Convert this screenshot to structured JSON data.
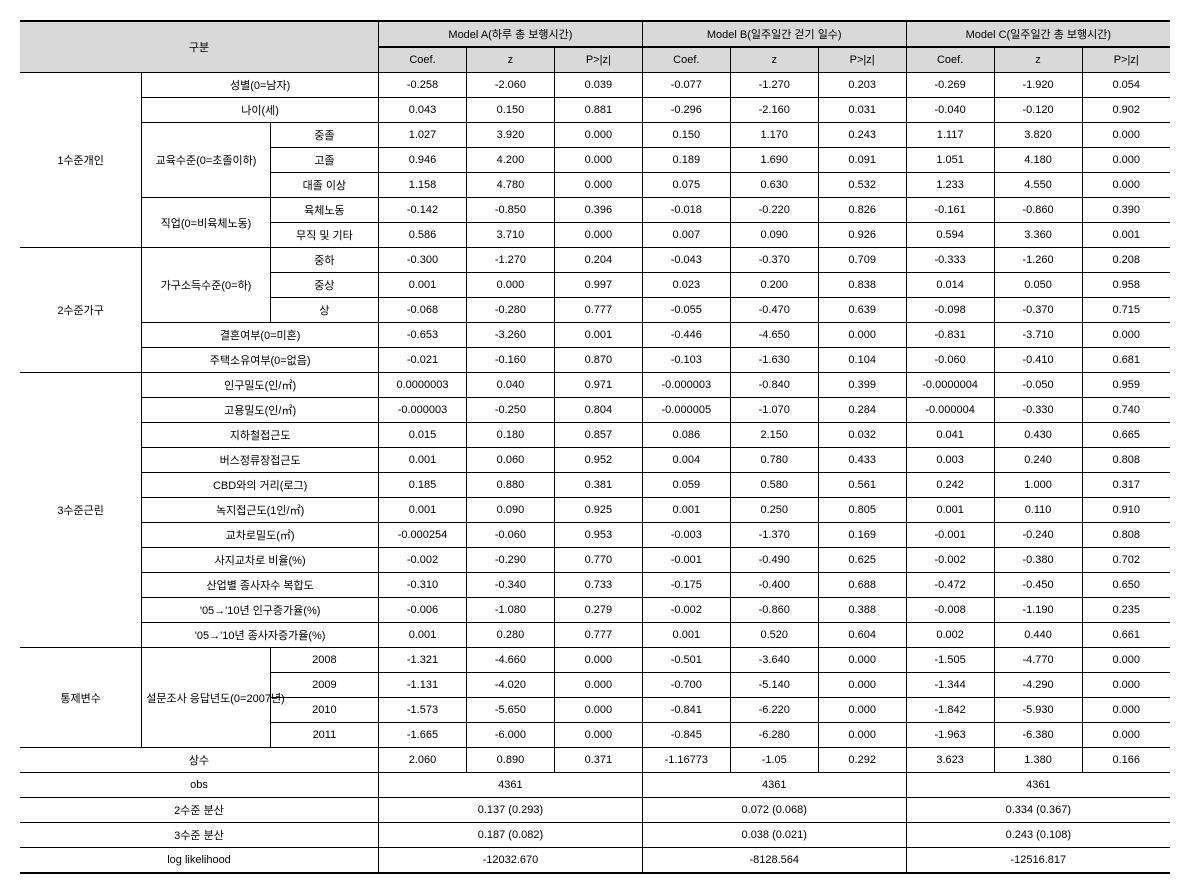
{
  "header": {
    "gubun": "구분",
    "modelA": "Model A(하루 총 보행시간)",
    "modelB": "Model B(일주일간 걷기 일수)",
    "modelC": "Model C(일주일간 총 보행시간)",
    "coef": "Coef.",
    "z": "z",
    "pz": "P>|z|"
  },
  "categories": {
    "level1": "1수준개인",
    "level2": "2수준가구",
    "level3": "3수준근린",
    "control": "통제변수"
  },
  "rows": {
    "gender": {
      "label": "성별(0=남자)",
      "a": [
        "-0.258",
        "-2.060",
        "0.039"
      ],
      "b": [
        "-0.077",
        "-1.270",
        "0.203"
      ],
      "c": [
        "-0.269",
        "-1.920",
        "0.054"
      ]
    },
    "age": {
      "label": "나이(세)",
      "a": [
        "0.043",
        "0.150",
        "0.881"
      ],
      "b": [
        "-0.296",
        "-2.160",
        "0.031"
      ],
      "c": [
        "-0.040",
        "-0.120",
        "0.902"
      ]
    },
    "edu_label": "교육수준(0=초졸이하)",
    "edu_mid": {
      "label": "중졸",
      "a": [
        "1.027",
        "3.920",
        "0.000"
      ],
      "b": [
        "0.150",
        "1.170",
        "0.243"
      ],
      "c": [
        "1.117",
        "3.820",
        "0.000"
      ]
    },
    "edu_high": {
      "label": "고졸",
      "a": [
        "0.946",
        "4.200",
        "0.000"
      ],
      "b": [
        "0.189",
        "1.690",
        "0.091"
      ],
      "c": [
        "1.051",
        "4.180",
        "0.000"
      ]
    },
    "edu_col": {
      "label": "대졸 이상",
      "a": [
        "1.158",
        "4.780",
        "0.000"
      ],
      "b": [
        "0.075",
        "0.630",
        "0.532"
      ],
      "c": [
        "1.233",
        "4.550",
        "0.000"
      ]
    },
    "job_label": "직업(0=비육체노동)",
    "job_phys": {
      "label": "육체노동",
      "a": [
        "-0.142",
        "-0.850",
        "0.396"
      ],
      "b": [
        "-0.018",
        "-0.220",
        "0.826"
      ],
      "c": [
        "-0.161",
        "-0.860",
        "0.390"
      ]
    },
    "job_none": {
      "label": "무직 및 기타",
      "a": [
        "0.586",
        "3.710",
        "0.000"
      ],
      "b": [
        "0.007",
        "0.090",
        "0.926"
      ],
      "c": [
        "0.594",
        "3.360",
        "0.001"
      ]
    },
    "income_label": "가구소득수준(0=하)",
    "inc_midlow": {
      "label": "중하",
      "a": [
        "-0.300",
        "-1.270",
        "0.204"
      ],
      "b": [
        "-0.043",
        "-0.370",
        "0.709"
      ],
      "c": [
        "-0.333",
        "-1.260",
        "0.208"
      ]
    },
    "inc_midhigh": {
      "label": "중상",
      "a": [
        "0.001",
        "0.000",
        "0.997"
      ],
      "b": [
        "0.023",
        "0.200",
        "0.838"
      ],
      "c": [
        "0.014",
        "0.050",
        "0.958"
      ]
    },
    "inc_high": {
      "label": "상",
      "a": [
        "-0.068",
        "-0.280",
        "0.777"
      ],
      "b": [
        "-0.055",
        "-0.470",
        "0.639"
      ],
      "c": [
        "-0.098",
        "-0.370",
        "0.715"
      ]
    },
    "marriage": {
      "label": "결혼여부(0=미혼)",
      "a": [
        "-0.653",
        "-3.260",
        "0.001"
      ],
      "b": [
        "-0.446",
        "-4.650",
        "0.000"
      ],
      "c": [
        "-0.831",
        "-3.710",
        "0.000"
      ]
    },
    "house": {
      "label": "주택소유여부(0=없음)",
      "a": [
        "-0.021",
        "-0.160",
        "0.870"
      ],
      "b": [
        "-0.103",
        "-1.630",
        "0.104"
      ],
      "c": [
        "-0.060",
        "-0.410",
        "0.681"
      ]
    },
    "popden": {
      "label": "인구밀도(인/㎡)",
      "a": [
        "0.0000003",
        "0.040",
        "0.971"
      ],
      "b": [
        "-0.000003",
        "-0.840",
        "0.399"
      ],
      "c": [
        "-0.0000004",
        "-0.050",
        "0.959"
      ]
    },
    "empden": {
      "label": "고용밀도(인/㎡)",
      "a": [
        "-0.000003",
        "-0.250",
        "0.804"
      ],
      "b": [
        "-0.000005",
        "-1.070",
        "0.284"
      ],
      "c": [
        "-0.000004",
        "-0.330",
        "0.740"
      ]
    },
    "subway": {
      "label": "지하철접근도",
      "a": [
        "0.015",
        "0.180",
        "0.857"
      ],
      "b": [
        "0.086",
        "2.150",
        "0.032"
      ],
      "c": [
        "0.041",
        "0.430",
        "0.665"
      ]
    },
    "bus": {
      "label": "버스정류장접근도",
      "a": [
        "0.001",
        "0.060",
        "0.952"
      ],
      "b": [
        "0.004",
        "0.780",
        "0.433"
      ],
      "c": [
        "0.003",
        "0.240",
        "0.808"
      ]
    },
    "cbd": {
      "label": "CBD와의 거리(로그)",
      "a": [
        "0.185",
        "0.880",
        "0.381"
      ],
      "b": [
        "0.059",
        "0.580",
        "0.561"
      ],
      "c": [
        "0.242",
        "1.000",
        "0.317"
      ]
    },
    "green": {
      "label": "녹지접근도(1인/㎡)",
      "a": [
        "0.001",
        "0.090",
        "0.925"
      ],
      "b": [
        "0.001",
        "0.250",
        "0.805"
      ],
      "c": [
        "0.001",
        "0.110",
        "0.910"
      ]
    },
    "intersect": {
      "label": "교차로밀도(㎡)",
      "a": [
        "-0.000254",
        "-0.060",
        "0.953"
      ],
      "b": [
        "-0.003",
        "-1.370",
        "0.169"
      ],
      "c": [
        "-0.001",
        "-0.240",
        "0.808"
      ]
    },
    "fourway": {
      "label": "사지교차로 비율(%)",
      "a": [
        "-0.002",
        "-0.290",
        "0.770"
      ],
      "b": [
        "-0.001",
        "-0.490",
        "0.625"
      ],
      "c": [
        "-0.002",
        "-0.380",
        "0.702"
      ]
    },
    "mix": {
      "label": "산업별 종사자수 복합도",
      "a": [
        "-0.310",
        "-0.340",
        "0.733"
      ],
      "b": [
        "-0.175",
        "-0.400",
        "0.688"
      ],
      "c": [
        "-0.472",
        "-0.450",
        "0.650"
      ]
    },
    "popgrowth": {
      "label": "'05→'10년 인구증가율(%)",
      "a": [
        "-0.006",
        "-1.080",
        "0.279"
      ],
      "b": [
        "-0.002",
        "-0.860",
        "0.388"
      ],
      "c": [
        "-0.008",
        "-1.190",
        "0.235"
      ]
    },
    "empgrowth": {
      "label": "'05→'10년 종사자증가율(%)",
      "a": [
        "0.001",
        "0.280",
        "0.777"
      ],
      "b": [
        "0.001",
        "0.520",
        "0.604"
      ],
      "c": [
        "0.002",
        "0.440",
        "0.661"
      ]
    },
    "survey_label": "설문조사 응답년도(0=2007년)",
    "y2008": {
      "label": "2008",
      "a": [
        "-1.321",
        "-4.660",
        "0.000"
      ],
      "b": [
        "-0.501",
        "-3.640",
        "0.000"
      ],
      "c": [
        "-1.505",
        "-4.770",
        "0.000"
      ]
    },
    "y2009": {
      "label": "2009",
      "a": [
        "-1.131",
        "-4.020",
        "0.000"
      ],
      "b": [
        "-0.700",
        "-5.140",
        "0.000"
      ],
      "c": [
        "-1.344",
        "-4.290",
        "0.000"
      ]
    },
    "y2010": {
      "label": "2010",
      "a": [
        "-1.573",
        "-5.650",
        "0.000"
      ],
      "b": [
        "-0.841",
        "-6.220",
        "0.000"
      ],
      "c": [
        "-1.842",
        "-5.930",
        "0.000"
      ]
    },
    "y2011": {
      "label": "2011",
      "a": [
        "-1.665",
        "-6.000",
        "0.000"
      ],
      "b": [
        "-0.845",
        "-6.280",
        "0.000"
      ],
      "c": [
        "-1.963",
        "-6.380",
        "0.000"
      ]
    },
    "const": {
      "label": "상수",
      "a": [
        "2.060",
        "0.890",
        "0.371"
      ],
      "b": [
        "-1.16773",
        "-1.05",
        "0.292"
      ],
      "c": [
        "3.623",
        "1.380",
        "0.166"
      ]
    }
  },
  "footer": {
    "obs": {
      "label": "obs",
      "a": "4361",
      "b": "4361",
      "c": "4361"
    },
    "var2": {
      "label": "2수준 분산",
      "a": "0.137 (0.293)",
      "b": "0.072 (0.068)",
      "c": "0.334 (0.367)"
    },
    "var3": {
      "label": "3수준 분산",
      "a": "0.187 (0.082)",
      "b": "0.038 (0.021)",
      "c": "0.243 (0.108)"
    },
    "ll": {
      "label": "log likelihood",
      "a": "-12032.670",
      "b": "-8128.564",
      "c": "-12516.817"
    }
  }
}
